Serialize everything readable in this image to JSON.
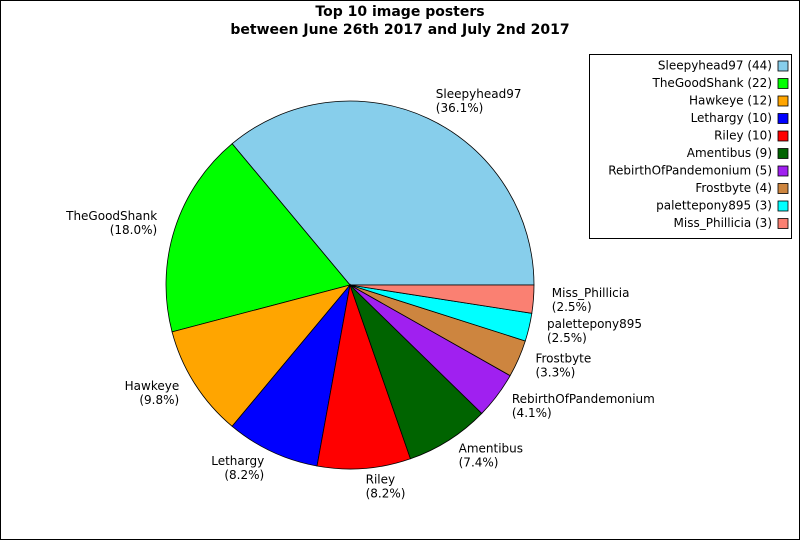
{
  "chart_data": {
    "type": "pie",
    "title": [
      "Top 10 image posters",
      "between June 26th 2017 and July 2nd 2017"
    ],
    "categories": [
      "Sleepyhead97",
      "TheGoodShank",
      "Hawkeye",
      "Lethargy",
      "Riley",
      "Amentibus",
      "RebirthOfPandemonium",
      "Frostbyte",
      "palettepony895",
      "Miss_Phillicia"
    ],
    "values": [
      44,
      22,
      12,
      10,
      10,
      9,
      5,
      4,
      3,
      3
    ],
    "value_labels": [
      "(36.1%)",
      "(18.0%)",
      "(9.8%)",
      "(8.2%)",
      "(8.2%)",
      "(7.4%)",
      "(4.1%)",
      "(3.3%)",
      "(2.5%)",
      "(2.5%)"
    ],
    "legend": [
      "Sleepyhead97 (44)",
      "TheGoodShank (22)",
      "Hawkeye (12)",
      "Lethargy (10)",
      "Riley (10)",
      "Amentibus (9)",
      "RebirthOfPandemonium (5)",
      "Frostbyte (4)",
      "palettepony895 (3)",
      "Miss_Phillicia (3)"
    ],
    "colors": [
      "#87ceeb",
      "#00ff00",
      "#ffa500",
      "#0000ff",
      "#ff0000",
      "#006400",
      "#a020f0",
      "#cd853f",
      "#00ffff",
      "#fa8072"
    ],
    "legend_position": "upper right"
  }
}
